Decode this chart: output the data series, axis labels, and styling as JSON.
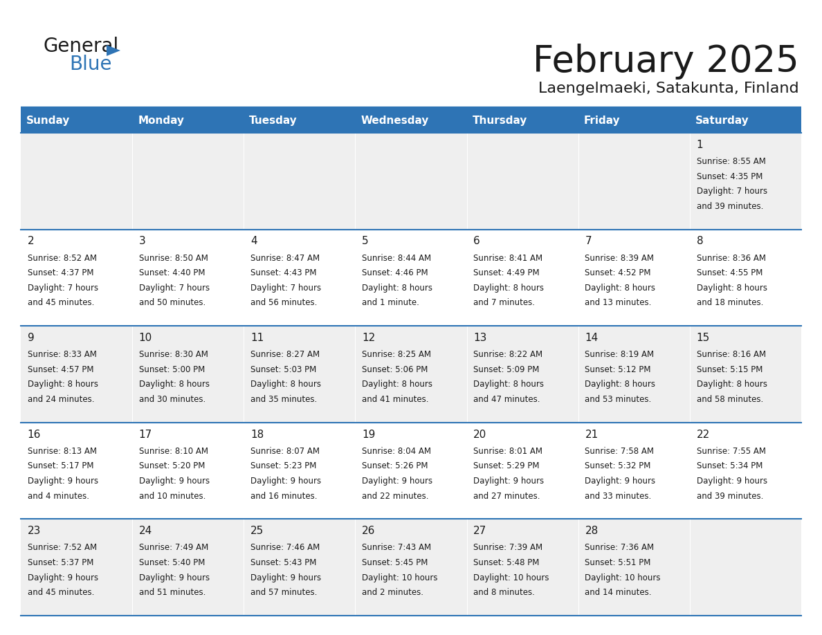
{
  "title": "February 2025",
  "subtitle": "Laengelmaeki, Satakunta, Finland",
  "header_color": "#2E74B5",
  "header_text_color": "#FFFFFF",
  "cell_bg_white": "#FFFFFF",
  "cell_bg_gray": "#EFEFEF",
  "border_color": "#2E74B5",
  "text_color": "#1a1a1a",
  "day_headers": [
    "Sunday",
    "Monday",
    "Tuesday",
    "Wednesday",
    "Thursday",
    "Friday",
    "Saturday"
  ],
  "weeks": [
    [
      {
        "day": null,
        "info": null
      },
      {
        "day": null,
        "info": null
      },
      {
        "day": null,
        "info": null
      },
      {
        "day": null,
        "info": null
      },
      {
        "day": null,
        "info": null
      },
      {
        "day": null,
        "info": null
      },
      {
        "day": "1",
        "info": "Sunrise: 8:55 AM\nSunset: 4:35 PM\nDaylight: 7 hours\nand 39 minutes."
      }
    ],
    [
      {
        "day": "2",
        "info": "Sunrise: 8:52 AM\nSunset: 4:37 PM\nDaylight: 7 hours\nand 45 minutes."
      },
      {
        "day": "3",
        "info": "Sunrise: 8:50 AM\nSunset: 4:40 PM\nDaylight: 7 hours\nand 50 minutes."
      },
      {
        "day": "4",
        "info": "Sunrise: 8:47 AM\nSunset: 4:43 PM\nDaylight: 7 hours\nand 56 minutes."
      },
      {
        "day": "5",
        "info": "Sunrise: 8:44 AM\nSunset: 4:46 PM\nDaylight: 8 hours\nand 1 minute."
      },
      {
        "day": "6",
        "info": "Sunrise: 8:41 AM\nSunset: 4:49 PM\nDaylight: 8 hours\nand 7 minutes."
      },
      {
        "day": "7",
        "info": "Sunrise: 8:39 AM\nSunset: 4:52 PM\nDaylight: 8 hours\nand 13 minutes."
      },
      {
        "day": "8",
        "info": "Sunrise: 8:36 AM\nSunset: 4:55 PM\nDaylight: 8 hours\nand 18 minutes."
      }
    ],
    [
      {
        "day": "9",
        "info": "Sunrise: 8:33 AM\nSunset: 4:57 PM\nDaylight: 8 hours\nand 24 minutes."
      },
      {
        "day": "10",
        "info": "Sunrise: 8:30 AM\nSunset: 5:00 PM\nDaylight: 8 hours\nand 30 minutes."
      },
      {
        "day": "11",
        "info": "Sunrise: 8:27 AM\nSunset: 5:03 PM\nDaylight: 8 hours\nand 35 minutes."
      },
      {
        "day": "12",
        "info": "Sunrise: 8:25 AM\nSunset: 5:06 PM\nDaylight: 8 hours\nand 41 minutes."
      },
      {
        "day": "13",
        "info": "Sunrise: 8:22 AM\nSunset: 5:09 PM\nDaylight: 8 hours\nand 47 minutes."
      },
      {
        "day": "14",
        "info": "Sunrise: 8:19 AM\nSunset: 5:12 PM\nDaylight: 8 hours\nand 53 minutes."
      },
      {
        "day": "15",
        "info": "Sunrise: 8:16 AM\nSunset: 5:15 PM\nDaylight: 8 hours\nand 58 minutes."
      }
    ],
    [
      {
        "day": "16",
        "info": "Sunrise: 8:13 AM\nSunset: 5:17 PM\nDaylight: 9 hours\nand 4 minutes."
      },
      {
        "day": "17",
        "info": "Sunrise: 8:10 AM\nSunset: 5:20 PM\nDaylight: 9 hours\nand 10 minutes."
      },
      {
        "day": "18",
        "info": "Sunrise: 8:07 AM\nSunset: 5:23 PM\nDaylight: 9 hours\nand 16 minutes."
      },
      {
        "day": "19",
        "info": "Sunrise: 8:04 AM\nSunset: 5:26 PM\nDaylight: 9 hours\nand 22 minutes."
      },
      {
        "day": "20",
        "info": "Sunrise: 8:01 AM\nSunset: 5:29 PM\nDaylight: 9 hours\nand 27 minutes."
      },
      {
        "day": "21",
        "info": "Sunrise: 7:58 AM\nSunset: 5:32 PM\nDaylight: 9 hours\nand 33 minutes."
      },
      {
        "day": "22",
        "info": "Sunrise: 7:55 AM\nSunset: 5:34 PM\nDaylight: 9 hours\nand 39 minutes."
      }
    ],
    [
      {
        "day": "23",
        "info": "Sunrise: 7:52 AM\nSunset: 5:37 PM\nDaylight: 9 hours\nand 45 minutes."
      },
      {
        "day": "24",
        "info": "Sunrise: 7:49 AM\nSunset: 5:40 PM\nDaylight: 9 hours\nand 51 minutes."
      },
      {
        "day": "25",
        "info": "Sunrise: 7:46 AM\nSunset: 5:43 PM\nDaylight: 9 hours\nand 57 minutes."
      },
      {
        "day": "26",
        "info": "Sunrise: 7:43 AM\nSunset: 5:45 PM\nDaylight: 10 hours\nand 2 minutes."
      },
      {
        "day": "27",
        "info": "Sunrise: 7:39 AM\nSunset: 5:48 PM\nDaylight: 10 hours\nand 8 minutes."
      },
      {
        "day": "28",
        "info": "Sunrise: 7:36 AM\nSunset: 5:51 PM\nDaylight: 10 hours\nand 14 minutes."
      },
      {
        "day": null,
        "info": null
      }
    ]
  ]
}
